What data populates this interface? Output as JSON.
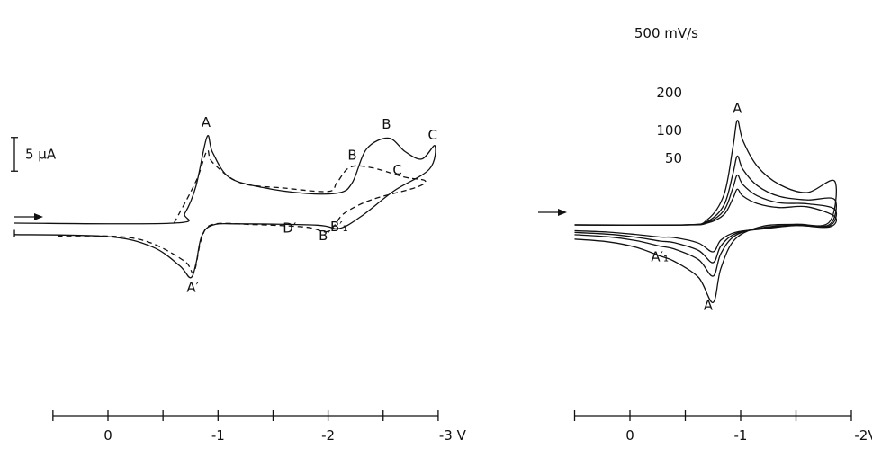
{
  "chart_data": [
    {
      "type": "line",
      "chart": "left",
      "xunit": "V",
      "x_ticks": [
        "0",
        "-1",
        "-2",
        "-3 V"
      ],
      "x_tick_values": [
        0,
        -1,
        -2,
        -3
      ],
      "xlim": [
        0.5,
        -3.0
      ],
      "scale_bar": {
        "label": "5 μA",
        "value": 5
      },
      "series": [
        {
          "style": "solid",
          "forward": [
            [
              0.85,
              0.0
            ],
            [
              -0.6,
              0.0
            ],
            [
              -0.7,
              1.5
            ],
            [
              -0.8,
              5.5
            ],
            [
              -0.9,
              12.8
            ],
            [
              -0.95,
              10.5
            ],
            [
              -1.1,
              6.8
            ],
            [
              -1.4,
              5.3
            ],
            [
              -1.8,
              4.4
            ],
            [
              -2.1,
              4.5
            ],
            [
              -2.22,
              6.0
            ],
            [
              -2.35,
              11.0
            ],
            [
              -2.55,
              12.6
            ],
            [
              -2.7,
              10.6
            ],
            [
              -2.85,
              9.5
            ],
            [
              -2.97,
              11.5
            ]
          ],
          "reverse": [
            [
              -2.97,
              11.5
            ],
            [
              -2.92,
              8.0
            ],
            [
              -2.6,
              4.8
            ],
            [
              -2.3,
              1.0
            ],
            [
              -2.1,
              -0.8
            ],
            [
              -1.9,
              -0.3
            ],
            [
              -1.2,
              -0.1
            ],
            [
              -0.95,
              -0.3
            ],
            [
              -0.85,
              -2.0
            ],
            [
              -0.8,
              -6.0
            ],
            [
              -0.75,
              -8.1
            ],
            [
              -0.65,
              -6.3
            ],
            [
              -0.4,
              -3.5
            ],
            [
              0.0,
              -2.0
            ],
            [
              0.85,
              -1.7
            ]
          ]
        },
        {
          "style": "dashed",
          "forward": [
            [
              -0.6,
              0.0
            ],
            [
              -0.8,
              6.2
            ],
            [
              -0.9,
              10.7
            ],
            [
              -0.95,
              9.0
            ],
            [
              -1.2,
              6.0
            ],
            [
              -1.6,
              5.2
            ],
            [
              -2.0,
              4.7
            ],
            [
              -2.08,
              6.0
            ],
            [
              -2.2,
              8.3
            ],
            [
              -2.4,
              8.2
            ],
            [
              -2.7,
              6.8
            ],
            [
              -2.88,
              6.3
            ]
          ],
          "reverse": [
            [
              -2.88,
              6.3
            ],
            [
              -2.8,
              5.3
            ],
            [
              -2.4,
              3.5
            ],
            [
              -2.15,
              1.5
            ],
            [
              -2.05,
              -0.5
            ],
            [
              -1.97,
              -1.3
            ],
            [
              -1.8,
              -0.6
            ],
            [
              -1.3,
              -0.2
            ],
            [
              -0.95,
              -0.2
            ],
            [
              -0.85,
              -2.3
            ],
            [
              -0.78,
              -7.3
            ],
            [
              -0.7,
              -5.7
            ],
            [
              -0.4,
              -3.0
            ],
            [
              -0.1,
              -2.0
            ],
            [
              0.45,
              -1.9
            ]
          ]
        }
      ],
      "annotations": [
        {
          "text": "A",
          "x": -0.89,
          "y": 14.3
        },
        {
          "text": "B",
          "x": -2.53,
          "y": 14.0
        },
        {
          "text": "C",
          "x": -2.95,
          "y": 12.4
        },
        {
          "text": "B",
          "x": -2.22,
          "y": 9.4
        },
        {
          "text": "C",
          "x": -2.63,
          "y": 7.2
        },
        {
          "text": "D′",
          "x": -1.65,
          "y": -1.4
        },
        {
          "text": "B′",
          "x": -1.97,
          "y": -2.5
        },
        {
          "text": "B′₁",
          "x": -2.1,
          "y": -1.2
        },
        {
          "text": "A′",
          "x": -0.77,
          "y": -10.2
        }
      ]
    },
    {
      "type": "line",
      "chart": "right",
      "xunit": "V",
      "x_ticks": [
        "0",
        "-1",
        "-2V"
      ],
      "x_tick_values": [
        0,
        -1,
        -2
      ],
      "xlim": [
        0.5,
        -2.0
      ],
      "series": [
        {
          "name": "500 mV/s",
          "rate": 500,
          "peak_A": 15.5,
          "peak_A_prime": -11.5
        },
        {
          "name": "200",
          "rate": 200,
          "peak_A": 10.2,
          "peak_A_prime": -7.6
        },
        {
          "name": "100",
          "rate": 100,
          "peak_A": 7.4,
          "peak_A_prime": -5.6
        },
        {
          "name": "50",
          "rate": 50,
          "peak_A": 5.3,
          "peak_A_prime": -4.0
        }
      ],
      "annotations": [
        {
          "text": "A",
          "x": -0.97,
          "y": 16.6
        },
        {
          "text": "A′",
          "x": -0.72,
          "y": -12.6
        },
        {
          "text": "A′₁",
          "x": -0.27,
          "y": -5.4
        }
      ]
    }
  ]
}
